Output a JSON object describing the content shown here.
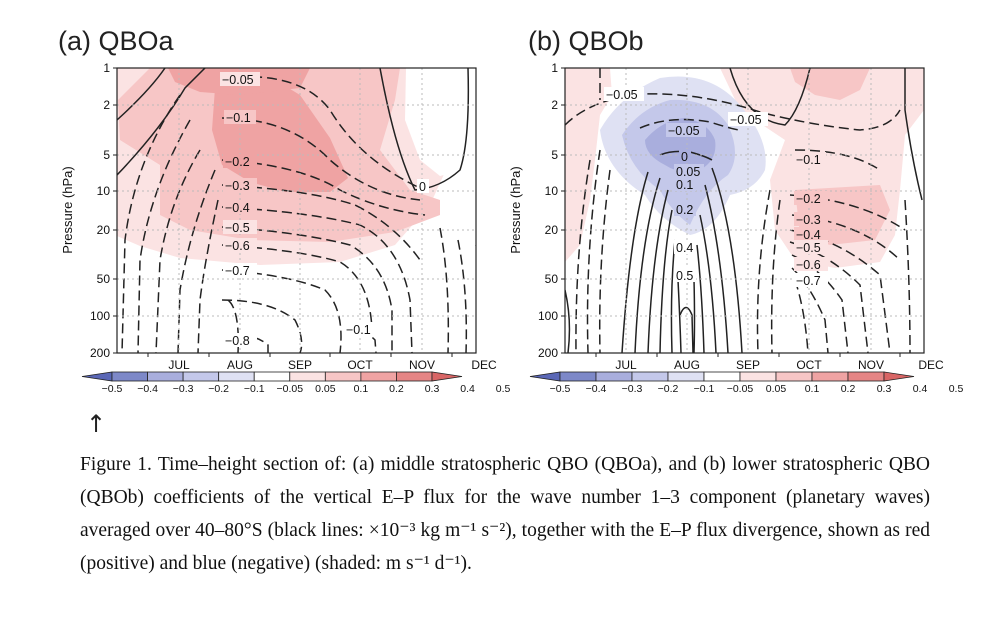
{
  "panels": [
    {
      "id": "a",
      "title": "(a) QBOa",
      "ylabel": "Pressure (hPa)",
      "yticks": [
        "1",
        "2",
        "5",
        "10",
        "20",
        "50",
        "100",
        "200"
      ],
      "xticks": [
        "JUL",
        "AUG",
        "SEP",
        "OCT",
        "NOV",
        "DEC"
      ],
      "contour_labels": [
        "−0.05",
        "−0.1",
        "−0.2",
        "−0.3",
        "−0.4",
        "−0.5",
        "−0.6",
        "−0.7",
        "−0.8",
        "−0.1",
        "0"
      ],
      "colorbar": [
        "−0.5",
        "−0.4",
        "−0.3",
        "−0.2",
        "−0.1",
        "−0.05",
        "0.05",
        "0.1",
        "0.2",
        "0.3",
        "0.4",
        "0.5"
      ]
    },
    {
      "id": "b",
      "title": "(b) QBOb",
      "ylabel": "Pressure (hPa)",
      "yticks": [
        "1",
        "2",
        "5",
        "10",
        "20",
        "50",
        "100",
        "200"
      ],
      "xticks": [
        "JUL",
        "AUG",
        "SEP",
        "OCT",
        "NOV",
        "DEC"
      ],
      "contour_labels": [
        "−0.05",
        "−0.05",
        "−0.05",
        "0",
        "0.05",
        "0.1",
        "0.2",
        "0.4",
        "0.5",
        "−0.1",
        "−0.2",
        "−0.3",
        "−0.4",
        "−0.5",
        "−0.6",
        "−0.7"
      ],
      "colorbar": [
        "−0.5",
        "−0.4",
        "−0.3",
        "−0.2",
        "−0.1",
        "−0.05",
        "0.05",
        "0.1",
        "0.2",
        "0.3",
        "0.4",
        "0.5"
      ]
    }
  ],
  "chart_data": [
    {
      "type": "heatmap",
      "title": "(a) QBOa",
      "xlabel": "",
      "ylabel": "Pressure (hPa)",
      "x_categories": [
        "JUL",
        "AUG",
        "SEP",
        "OCT",
        "NOV",
        "DEC"
      ],
      "y_ticks": [
        1,
        2,
        5,
        10,
        20,
        50,
        100,
        200
      ],
      "y_scale": "log, inverted",
      "shaded_field": "E-P flux divergence",
      "shading_levels": [
        -0.5,
        -0.4,
        -0.3,
        -0.2,
        -0.1,
        -0.05,
        0.05,
        0.1,
        0.2,
        0.3,
        0.4,
        0.5
      ],
      "contour_levels_labeled": [
        -0.05,
        -0.1,
        -0.2,
        -0.3,
        -0.4,
        -0.5,
        -0.6,
        -0.7,
        -0.8,
        -0.1,
        0
      ],
      "colors": {
        "pos1": "#fbe3e3",
        "pos2": "#f7c6c6",
        "pos3": "#efa3a3",
        "neg1": "#dfe1f3",
        "neg2": "#c4c8ea",
        "neg3": "#a9aedd"
      }
    },
    {
      "type": "heatmap",
      "title": "(b) QBOb",
      "xlabel": "",
      "ylabel": "Pressure (hPa)",
      "x_categories": [
        "JUL",
        "AUG",
        "SEP",
        "OCT",
        "NOV",
        "DEC"
      ],
      "y_ticks": [
        1,
        2,
        5,
        10,
        20,
        50,
        100,
        200
      ],
      "y_scale": "log, inverted",
      "shaded_field": "E-P flux divergence",
      "shading_levels": [
        -0.5,
        -0.4,
        -0.3,
        -0.2,
        -0.1,
        -0.05,
        0.05,
        0.1,
        0.2,
        0.3,
        0.4,
        0.5
      ],
      "contour_levels_labeled": [
        -0.05,
        -0.05,
        -0.05,
        0,
        0.05,
        0.1,
        0.2,
        0.4,
        0.5,
        -0.1,
        -0.2,
        -0.3,
        -0.4,
        -0.5,
        -0.6,
        -0.7
      ],
      "colors": {
        "pos1": "#fbe3e3",
        "pos2": "#f7c6c6",
        "neg1": "#dfe1f3",
        "neg2": "#c4c8ea",
        "neg3": "#a9aedd"
      }
    }
  ],
  "arrow": "↑",
  "caption": "Figure 1. Time–height section of: (a) middle stratospheric QBO (QBOa), and (b) lower stratospheric QBO (QBOb) coefficients of the vertical E–P flux for the wave number 1–3 component (planetary waves) averaged over 40–80°S (black lines: ×10⁻³ kg m⁻¹ s⁻²), together with the E–P flux divergence, shown as red (positive) and blue (negative) (shaded: m s⁻¹ d⁻¹)."
}
